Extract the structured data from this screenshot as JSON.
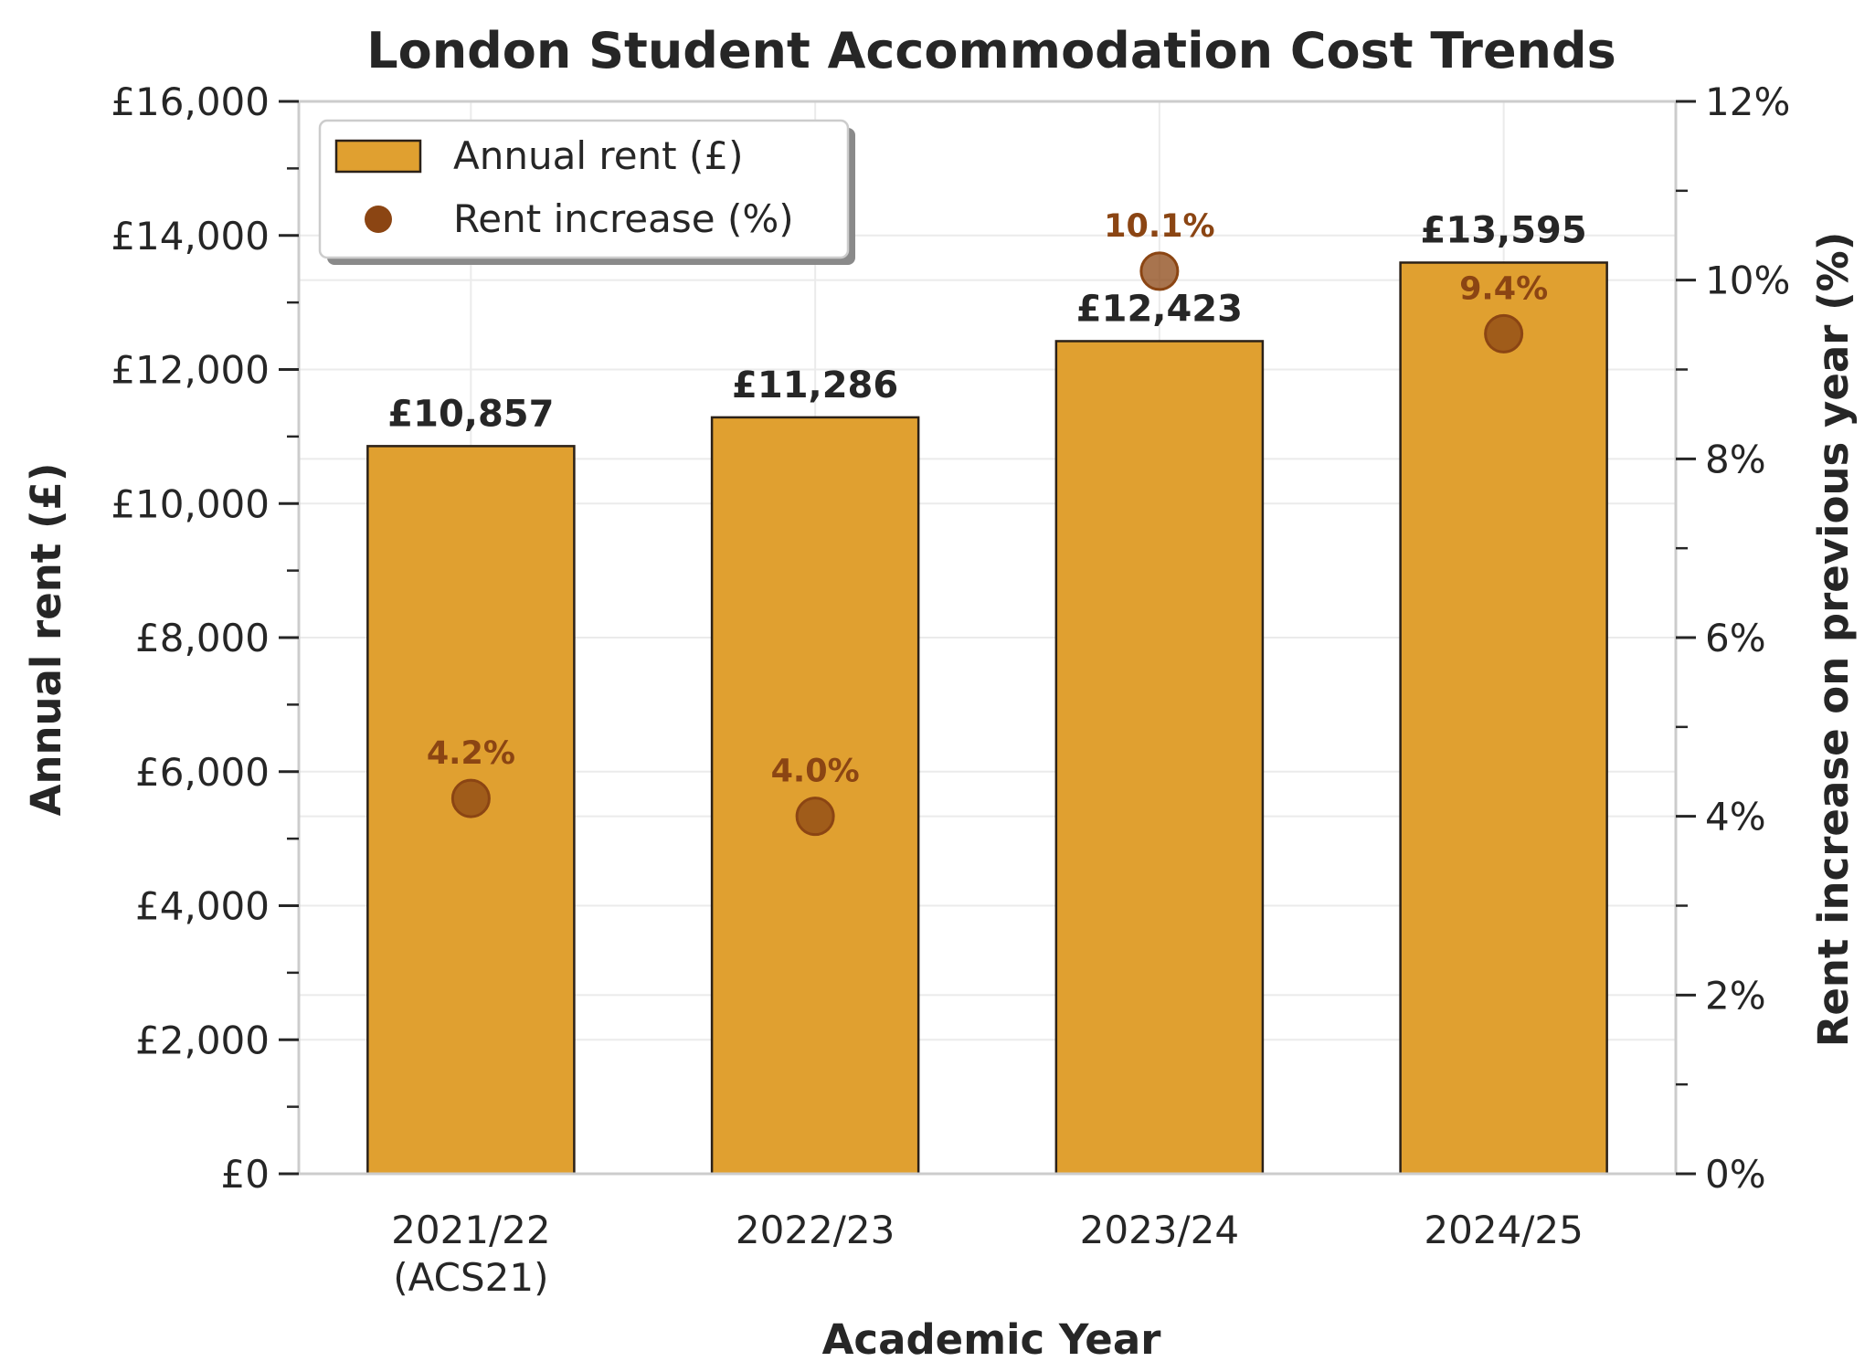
{
  "chart_data": {
    "type": "bar",
    "title": "London Student Accommodation Cost Trends",
    "xlabel": "Academic Year",
    "ylabel": "Annual rent (£)",
    "y2label": "Rent increase on previous year (%)",
    "categories": [
      [
        "2021/22",
        "(ACS21)"
      ],
      [
        "2022/23"
      ],
      [
        "2023/24"
      ],
      [
        "2024/25"
      ]
    ],
    "ylim": [
      0,
      16000
    ],
    "y2lim": [
      0,
      12
    ],
    "yticks": [
      0,
      2000,
      4000,
      6000,
      8000,
      10000,
      12000,
      14000,
      16000
    ],
    "ytick_labels": [
      "£0",
      "£2,000",
      "£4,000",
      "£6,000",
      "£8,000",
      "£10,000",
      "£12,000",
      "£14,000",
      "£16,000"
    ],
    "y2ticks": [
      0,
      2,
      4,
      6,
      8,
      10,
      12
    ],
    "y2tick_labels": [
      "0%",
      "2%",
      "4%",
      "6%",
      "8%",
      "10%",
      "12%"
    ],
    "grid": true,
    "legend_position": "top-left",
    "series": [
      {
        "name": "Annual rent (£)",
        "kind": "bar",
        "axis": "left",
        "color": "#e0a030",
        "edge_color": "#2b2118",
        "values": [
          10857,
          11286,
          12423,
          13595
        ],
        "labels": [
          "£10,857",
          "£11,286",
          "£12,423",
          "£13,595"
        ]
      },
      {
        "name": "Rent increase (%)",
        "kind": "scatter",
        "axis": "right",
        "color": "#8b4513",
        "values": [
          4.2,
          4.0,
          10.1,
          9.4
        ],
        "labels": [
          "4.2%",
          "4.0%",
          "10.1%",
          "9.4%"
        ]
      }
    ]
  }
}
